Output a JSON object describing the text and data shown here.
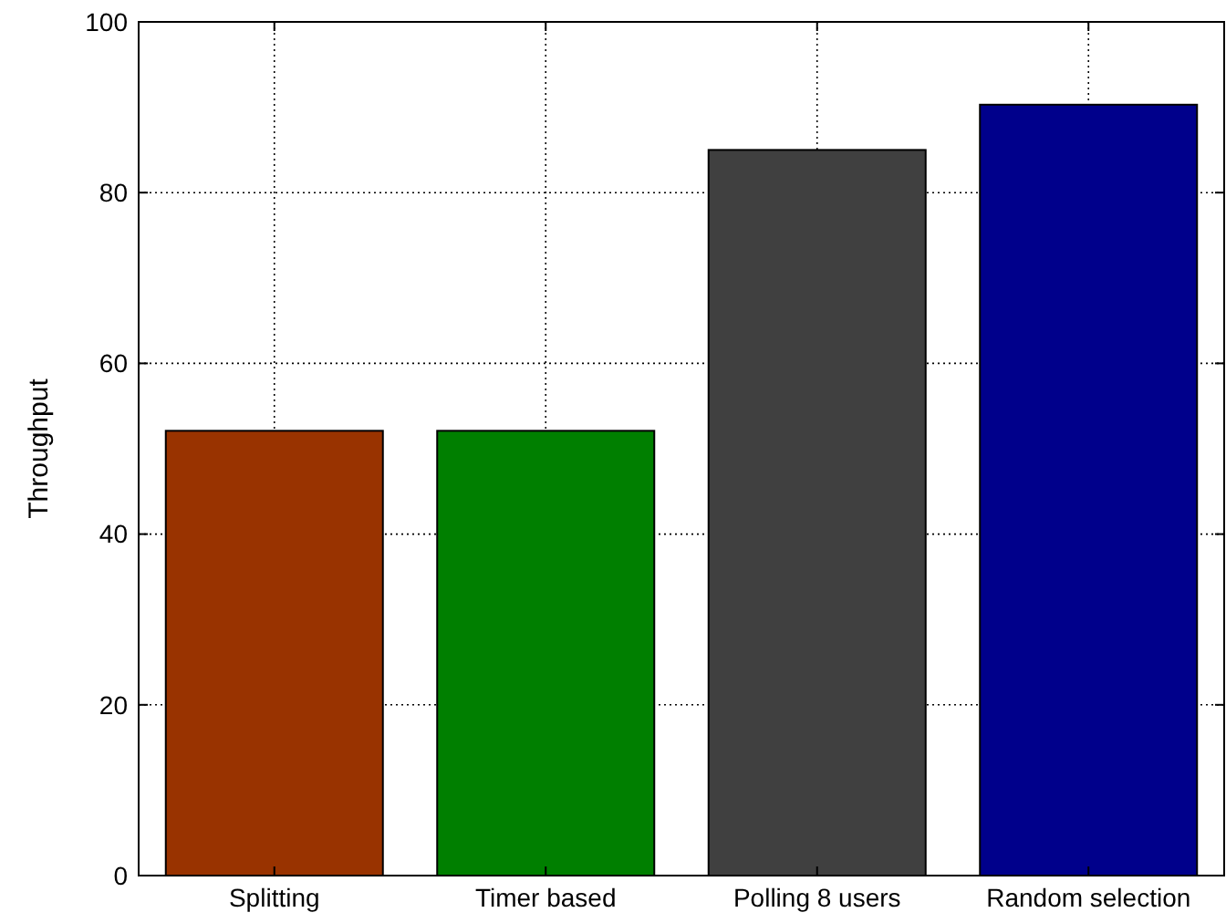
{
  "chart_data": {
    "type": "bar",
    "ylabel": "Throughput",
    "categories": [
      "Splitting",
      "Timer based",
      "Polling 8 users",
      "Random selection"
    ],
    "values": [
      52.1,
      52.1,
      85,
      90.3
    ],
    "colors": [
      "#993300",
      "#007f00",
      "#404040",
      "#00008b"
    ],
    "ylim": [
      0,
      100
    ],
    "yticks": [
      0,
      20,
      40,
      60,
      80,
      100
    ],
    "grid": true
  }
}
